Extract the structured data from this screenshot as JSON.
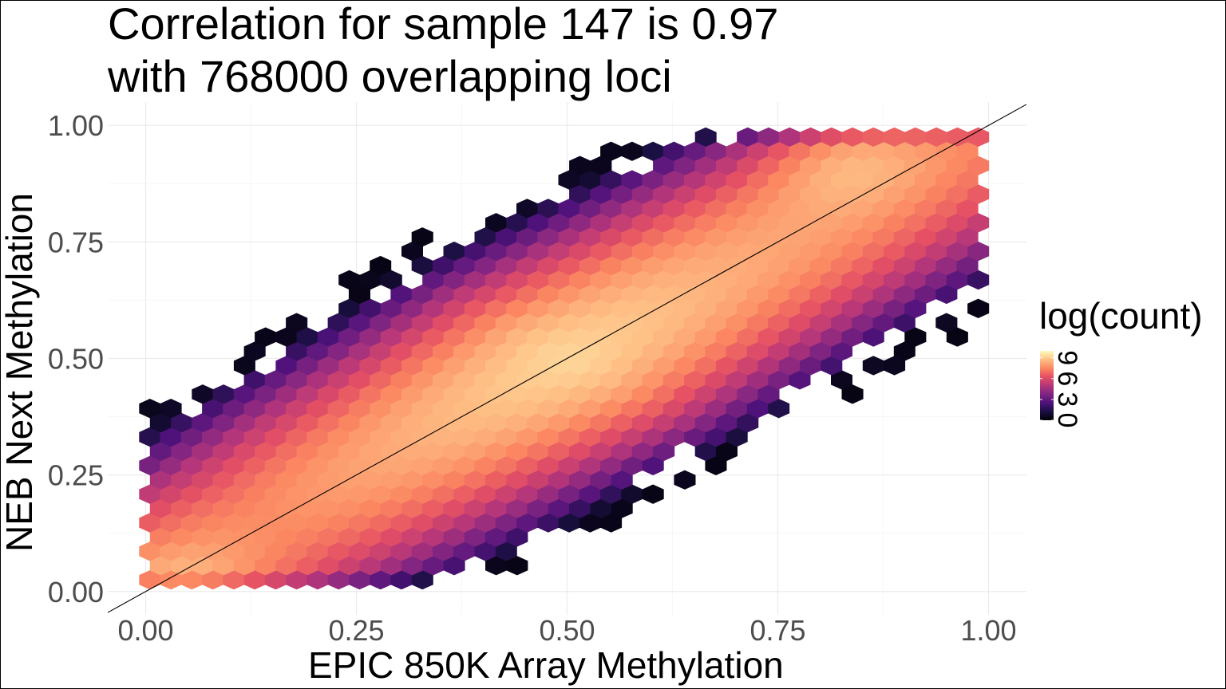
{
  "chart_data": {
    "type": "heatmap",
    "subtype": "hexbin",
    "title": "Correlation for sample 147 is 0.97",
    "subtitle": "with 768000 overlapping loci",
    "xlabel": "EPIC 850K Array Methylation",
    "ylabel": "NEB Next Methylation",
    "xlim": [
      -0.045,
      1.045
    ],
    "ylim": [
      -0.05,
      1.05
    ],
    "x_ticks": [
      "0.00",
      "0.25",
      "0.50",
      "0.75",
      "1.00"
    ],
    "y_ticks": [
      "0.00",
      "0.25",
      "0.50",
      "0.75",
      "1.00"
    ],
    "x_tick_values": [
      0,
      0.25,
      0.5,
      0.75,
      1.0
    ],
    "y_tick_values": [
      0,
      0.25,
      0.5,
      0.75,
      1.0
    ],
    "reference_line": {
      "intercept": 0,
      "slope": 1
    },
    "grid": true,
    "legend": {
      "title": "log(count)",
      "placement": "right",
      "ticks": [
        "0",
        "3",
        "6",
        "9"
      ],
      "tick_values": [
        0,
        3,
        6,
        9
      ],
      "range": [
        0,
        10
      ],
      "colormap": "magma"
    },
    "bins": {
      "columns": 40,
      "rows": 32,
      "description_source": "log count surface peaking near (0.05,0.02) and (0.82,0.93) along the diagonal"
    }
  }
}
